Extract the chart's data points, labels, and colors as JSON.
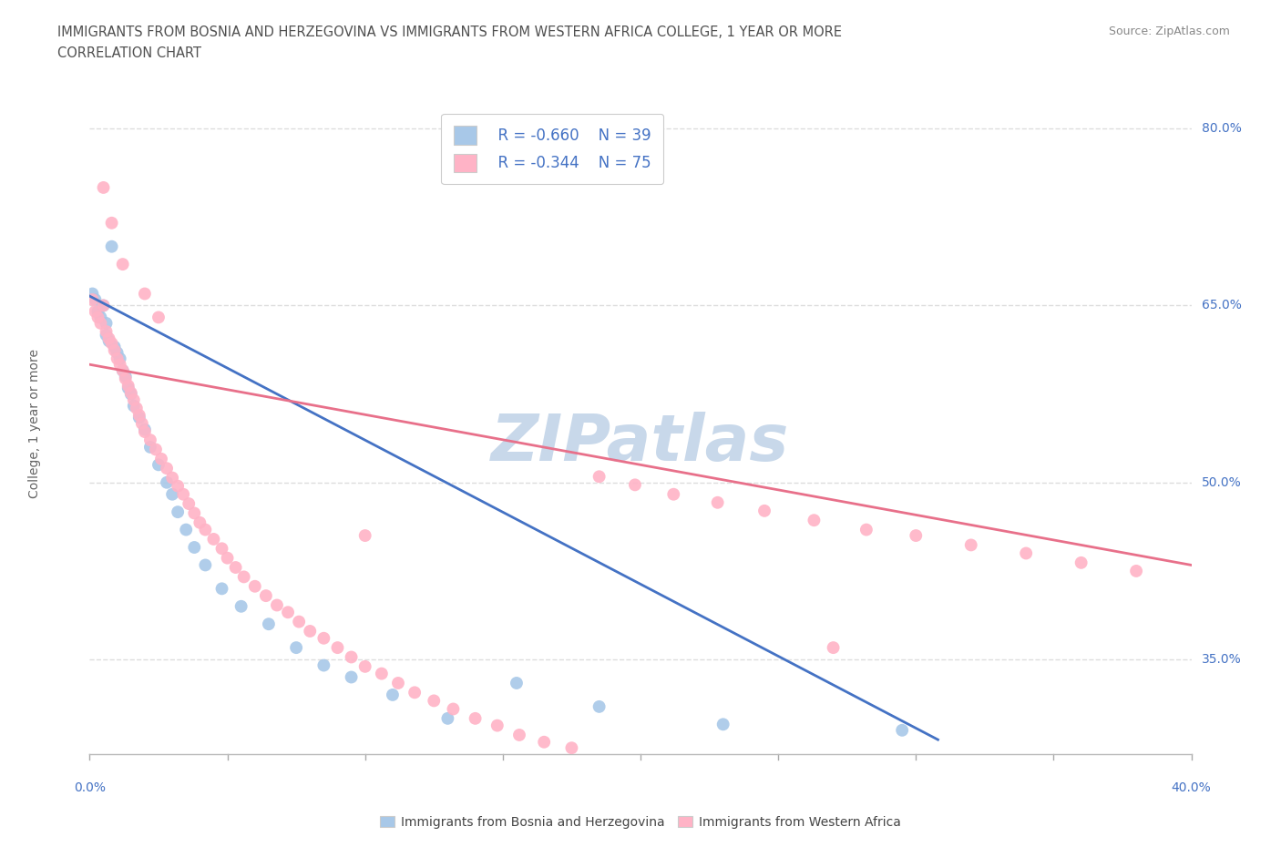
{
  "title_line1": "IMMIGRANTS FROM BOSNIA AND HERZEGOVINA VS IMMIGRANTS FROM WESTERN AFRICA COLLEGE, 1 YEAR OR MORE",
  "title_line2": "CORRELATION CHART",
  "source_text": "Source: ZipAtlas.com",
  "ylabel_label": "College, 1 year or more",
  "legend_blue_r": "R = -0.660",
  "legend_blue_n": "N = 39",
  "legend_pink_r": "R = -0.344",
  "legend_pink_n": "N = 75",
  "blue_color": "#A8C8E8",
  "pink_color": "#FFB3C6",
  "blue_line_color": "#4472C4",
  "pink_line_color": "#E8708A",
  "watermark_color": "#C8D8EA",
  "grid_color": "#DDDDDD",
  "title_color": "#505050",
  "axis_label_color": "#4472C4",
  "xlim": [
    0.0,
    0.4
  ],
  "ylim": [
    0.27,
    0.83
  ],
  "blue_scatter_x": [
    0.001,
    0.002,
    0.003,
    0.004,
    0.005,
    0.006,
    0.006,
    0.007,
    0.008,
    0.009,
    0.01,
    0.011,
    0.012,
    0.013,
    0.014,
    0.015,
    0.016,
    0.018,
    0.02,
    0.022,
    0.025,
    0.028,
    0.03,
    0.032,
    0.035,
    0.038,
    0.042,
    0.048,
    0.055,
    0.065,
    0.075,
    0.085,
    0.095,
    0.11,
    0.13,
    0.155,
    0.185,
    0.23,
    0.295
  ],
  "blue_scatter_y": [
    0.66,
    0.655,
    0.645,
    0.64,
    0.65,
    0.635,
    0.625,
    0.62,
    0.7,
    0.615,
    0.61,
    0.605,
    0.595,
    0.59,
    0.58,
    0.575,
    0.565,
    0.555,
    0.545,
    0.53,
    0.515,
    0.5,
    0.49,
    0.475,
    0.46,
    0.445,
    0.43,
    0.41,
    0.395,
    0.38,
    0.36,
    0.345,
    0.335,
    0.32,
    0.3,
    0.33,
    0.31,
    0.295,
    0.29
  ],
  "pink_scatter_x": [
    0.001,
    0.002,
    0.003,
    0.004,
    0.005,
    0.006,
    0.007,
    0.008,
    0.009,
    0.01,
    0.011,
    0.012,
    0.013,
    0.014,
    0.015,
    0.016,
    0.017,
    0.018,
    0.019,
    0.02,
    0.022,
    0.024,
    0.026,
    0.028,
    0.03,
    0.032,
    0.034,
    0.036,
    0.038,
    0.04,
    0.042,
    0.045,
    0.048,
    0.05,
    0.053,
    0.056,
    0.06,
    0.064,
    0.068,
    0.072,
    0.076,
    0.08,
    0.085,
    0.09,
    0.095,
    0.1,
    0.106,
    0.112,
    0.118,
    0.125,
    0.132,
    0.14,
    0.148,
    0.156,
    0.165,
    0.175,
    0.185,
    0.198,
    0.212,
    0.228,
    0.245,
    0.263,
    0.282,
    0.3,
    0.32,
    0.34,
    0.36,
    0.38,
    0.005,
    0.008,
    0.012,
    0.02,
    0.025,
    0.1,
    0.27
  ],
  "pink_scatter_y": [
    0.655,
    0.645,
    0.64,
    0.635,
    0.65,
    0.628,
    0.622,
    0.618,
    0.612,
    0.605,
    0.6,
    0.595,
    0.588,
    0.582,
    0.576,
    0.57,
    0.563,
    0.557,
    0.55,
    0.543,
    0.536,
    0.528,
    0.52,
    0.512,
    0.504,
    0.497,
    0.49,
    0.482,
    0.474,
    0.466,
    0.46,
    0.452,
    0.444,
    0.436,
    0.428,
    0.42,
    0.412,
    0.404,
    0.396,
    0.39,
    0.382,
    0.374,
    0.368,
    0.36,
    0.352,
    0.344,
    0.338,
    0.33,
    0.322,
    0.315,
    0.308,
    0.3,
    0.294,
    0.286,
    0.28,
    0.275,
    0.505,
    0.498,
    0.49,
    0.483,
    0.476,
    0.468,
    0.46,
    0.455,
    0.447,
    0.44,
    0.432,
    0.425,
    0.75,
    0.72,
    0.685,
    0.66,
    0.64,
    0.455,
    0.36
  ],
  "blue_trend_x": [
    0.0,
    0.308
  ],
  "blue_trend_y": [
    0.658,
    0.282
  ],
  "pink_trend_x": [
    0.0,
    0.4
  ],
  "pink_trend_y": [
    0.6,
    0.43
  ]
}
